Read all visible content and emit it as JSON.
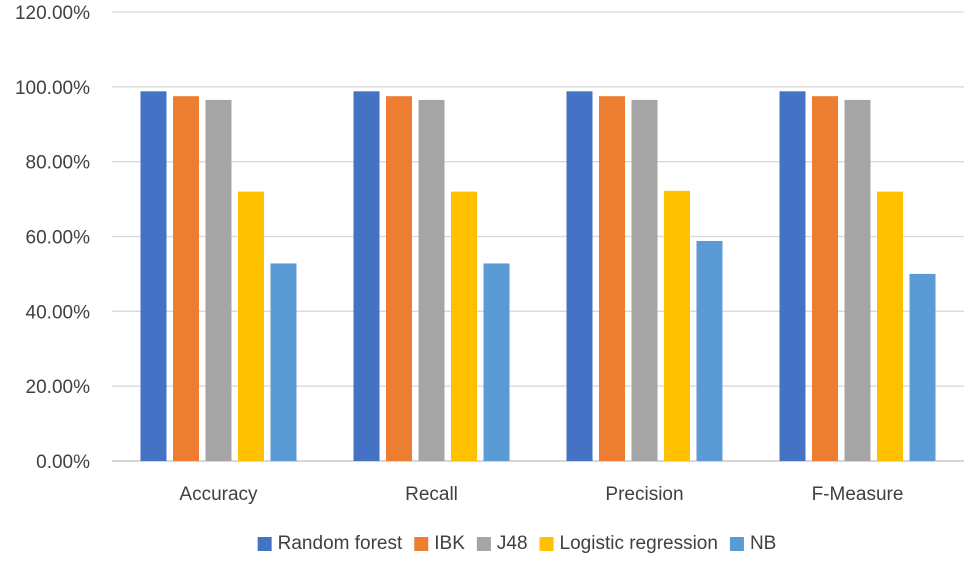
{
  "chart_data": {
    "type": "bar",
    "categories": [
      "Accuracy",
      "Recall",
      "Precision",
      "F-Measure"
    ],
    "series": [
      {
        "name": "Random forest",
        "color": "#4472C4",
        "values": [
          98.8,
          98.8,
          98.8,
          98.8
        ]
      },
      {
        "name": "IBK",
        "color": "#ED7D31",
        "values": [
          97.5,
          97.5,
          97.5,
          97.5
        ]
      },
      {
        "name": "J48",
        "color": "#A5A5A5",
        "values": [
          96.5,
          96.5,
          96.5,
          96.5
        ]
      },
      {
        "name": "Logistic regression",
        "color": "#FFC000",
        "values": [
          72.0,
          72.0,
          72.2,
          72.0
        ]
      },
      {
        "name": "NB",
        "color": "#5B9BD5",
        "values": [
          52.8,
          52.8,
          58.8,
          50.0
        ]
      }
    ],
    "y_ticks": [
      "0.00%",
      "20.00%",
      "40.00%",
      "60.00%",
      "80.00%",
      "100.00%",
      "120.00%"
    ],
    "ylim": [
      0,
      120
    ],
    "title": "",
    "xlabel": "",
    "ylabel": "",
    "grid": true,
    "legend_position": "bottom"
  }
}
